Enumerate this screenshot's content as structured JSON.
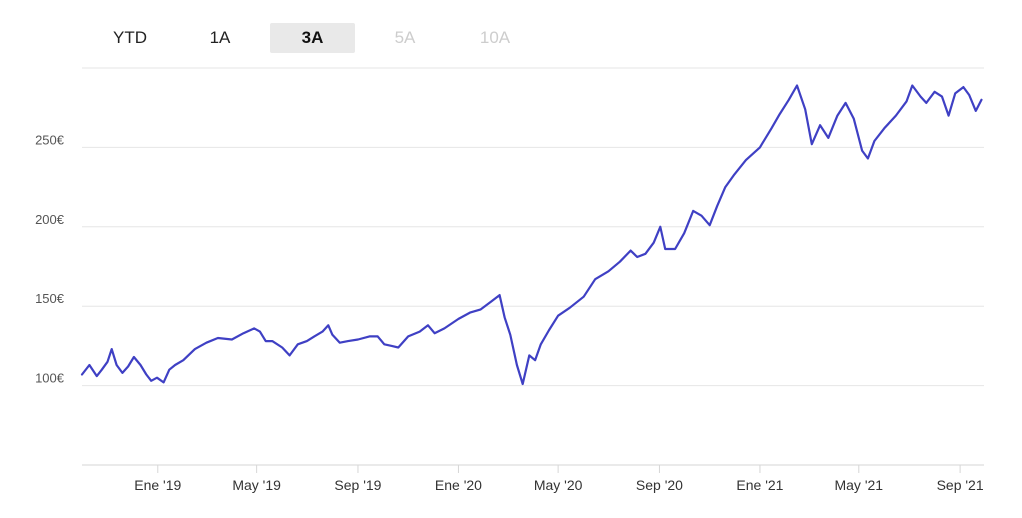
{
  "range_selector": {
    "tabs": [
      {
        "label": "YTD",
        "state": "normal"
      },
      {
        "label": "1A",
        "state": "normal"
      },
      {
        "label": "3A",
        "state": "active"
      },
      {
        "label": "5A",
        "state": "disabled"
      },
      {
        "label": "10A",
        "state": "disabled"
      }
    ]
  },
  "chart_data": {
    "type": "line",
    "title": "",
    "xlabel": "",
    "ylabel": "",
    "y_tick_labels": [
      "100€",
      "150€",
      "200€",
      "250€"
    ],
    "y_tick_values": [
      100,
      150,
      200,
      250
    ],
    "x_tick_labels": [
      "Ene '19",
      "May '19",
      "Sep '19",
      "Ene '20",
      "May '20",
      "Sep '20",
      "Ene '21",
      "May '21",
      "Sep '21"
    ],
    "x_tick_dates": [
      "2019-01-01",
      "2019-05-01",
      "2019-09-01",
      "2020-01-01",
      "2020-05-01",
      "2020-09-01",
      "2021-01-01",
      "2021-05-01",
      "2021-09-01"
    ],
    "xlim": [
      "2018-10-01",
      "2021-09-30"
    ],
    "ylim": [
      50,
      300
    ],
    "grid": true,
    "legend": "none",
    "series": [
      {
        "color": "#3f40c4",
        "points": [
          [
            "2018-10-01",
            107
          ],
          [
            "2018-10-10",
            113
          ],
          [
            "2018-10-19",
            106
          ],
          [
            "2018-10-25",
            110
          ],
          [
            "2018-11-01",
            115
          ],
          [
            "2018-11-06",
            123
          ],
          [
            "2018-11-12",
            113
          ],
          [
            "2018-11-19",
            108
          ],
          [
            "2018-11-26",
            112
          ],
          [
            "2018-12-03",
            118
          ],
          [
            "2018-12-11",
            113
          ],
          [
            "2018-12-18",
            107
          ],
          [
            "2018-12-24",
            103
          ],
          [
            "2018-12-31",
            105
          ],
          [
            "2019-01-08",
            102
          ],
          [
            "2019-01-15",
            110
          ],
          [
            "2019-01-22",
            113
          ],
          [
            "2019-02-01",
            116
          ],
          [
            "2019-02-15",
            123
          ],
          [
            "2019-03-01",
            127
          ],
          [
            "2019-03-15",
            130
          ],
          [
            "2019-04-01",
            129
          ],
          [
            "2019-04-15",
            133
          ],
          [
            "2019-04-28",
            136
          ],
          [
            "2019-05-05",
            134
          ],
          [
            "2019-05-12",
            128
          ],
          [
            "2019-05-20",
            128
          ],
          [
            "2019-06-01",
            124
          ],
          [
            "2019-06-10",
            119
          ],
          [
            "2019-06-20",
            126
          ],
          [
            "2019-07-01",
            128
          ],
          [
            "2019-07-10",
            131
          ],
          [
            "2019-07-20",
            134
          ],
          [
            "2019-07-27",
            138
          ],
          [
            "2019-08-01",
            132
          ],
          [
            "2019-08-10",
            127
          ],
          [
            "2019-08-20",
            128
          ],
          [
            "2019-09-01",
            129
          ],
          [
            "2019-09-15",
            131
          ],
          [
            "2019-09-25",
            131
          ],
          [
            "2019-10-03",
            126
          ],
          [
            "2019-10-12",
            125
          ],
          [
            "2019-10-20",
            124
          ],
          [
            "2019-11-01",
            131
          ],
          [
            "2019-11-15",
            134
          ],
          [
            "2019-11-25",
            138
          ],
          [
            "2019-12-03",
            133
          ],
          [
            "2019-12-15",
            136
          ],
          [
            "2020-01-01",
            142
          ],
          [
            "2020-01-15",
            146
          ],
          [
            "2020-01-28",
            148
          ],
          [
            "2020-02-10",
            153
          ],
          [
            "2020-02-20",
            157
          ],
          [
            "2020-02-26",
            143
          ],
          [
            "2020-03-04",
            132
          ],
          [
            "2020-03-12",
            113
          ],
          [
            "2020-03-19",
            101
          ],
          [
            "2020-03-27",
            119
          ],
          [
            "2020-04-03",
            116
          ],
          [
            "2020-04-10",
            126
          ],
          [
            "2020-04-20",
            135
          ],
          [
            "2020-05-01",
            144
          ],
          [
            "2020-05-15",
            149
          ],
          [
            "2020-06-01",
            156
          ],
          [
            "2020-06-15",
            167
          ],
          [
            "2020-07-01",
            172
          ],
          [
            "2020-07-15",
            178
          ],
          [
            "2020-07-28",
            185
          ],
          [
            "2020-08-05",
            181
          ],
          [
            "2020-08-15",
            183
          ],
          [
            "2020-08-25",
            190
          ],
          [
            "2020-09-02",
            200
          ],
          [
            "2020-09-08",
            186
          ],
          [
            "2020-09-20",
            186
          ],
          [
            "2020-10-01",
            196
          ],
          [
            "2020-10-12",
            210
          ],
          [
            "2020-10-22",
            207
          ],
          [
            "2020-11-01",
            201
          ],
          [
            "2020-11-10",
            213
          ],
          [
            "2020-11-20",
            225
          ],
          [
            "2020-12-01",
            233
          ],
          [
            "2020-12-15",
            242
          ],
          [
            "2021-01-01",
            250
          ],
          [
            "2021-01-15",
            262
          ],
          [
            "2021-01-25",
            271
          ],
          [
            "2021-02-05",
            280
          ],
          [
            "2021-02-15",
            289
          ],
          [
            "2021-02-25",
            274
          ],
          [
            "2021-03-05",
            252
          ],
          [
            "2021-03-15",
            264
          ],
          [
            "2021-03-25",
            256
          ],
          [
            "2021-04-05",
            270
          ],
          [
            "2021-04-15",
            278
          ],
          [
            "2021-04-25",
            268
          ],
          [
            "2021-05-05",
            248
          ],
          [
            "2021-05-12",
            243
          ],
          [
            "2021-05-20",
            254
          ],
          [
            "2021-06-01",
            262
          ],
          [
            "2021-06-15",
            270
          ],
          [
            "2021-06-28",
            279
          ],
          [
            "2021-07-05",
            289
          ],
          [
            "2021-07-15",
            282
          ],
          [
            "2021-07-22",
            278
          ],
          [
            "2021-08-01",
            285
          ],
          [
            "2021-08-10",
            282
          ],
          [
            "2021-08-18",
            270
          ],
          [
            "2021-08-26",
            284
          ],
          [
            "2021-09-05",
            288
          ],
          [
            "2021-09-12",
            283
          ],
          [
            "2021-09-20",
            273
          ],
          [
            "2021-09-27",
            280
          ]
        ]
      }
    ]
  }
}
